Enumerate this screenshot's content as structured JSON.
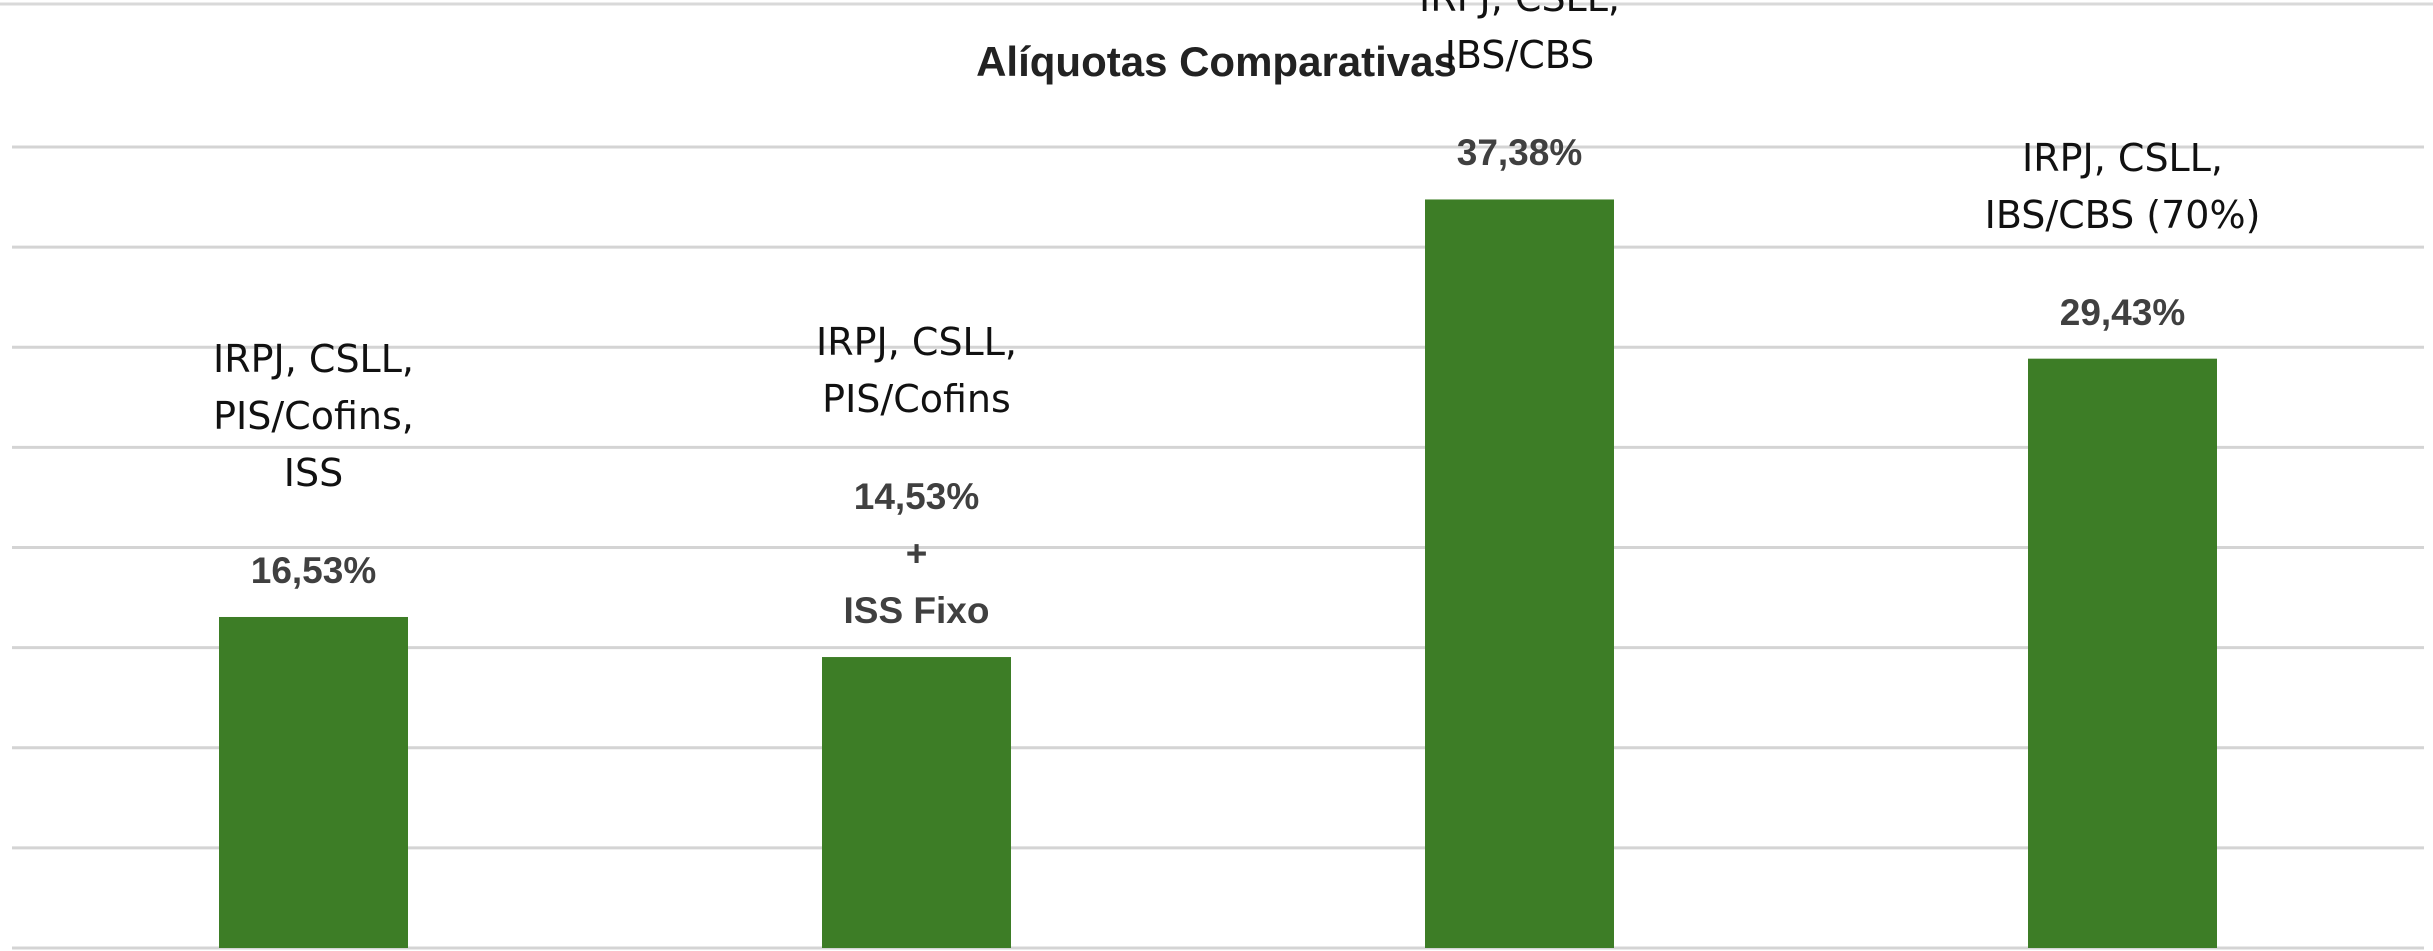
{
  "chart_data": {
    "type": "bar",
    "title": "Alíquotas Comparativas",
    "categories": [
      "IRPJ, CSLL,\nPIS/Cofins,\nISS",
      "IRPJ, CSLL,\nPIS/Cofins",
      "IRPJ, CSLL,\nIBS/CBS",
      "IRPJ, CSLL,\nIBS/CBS (70%)"
    ],
    "values": [
      16.53,
      14.53,
      37.38,
      29.43
    ],
    "value_labels": [
      "16,53%",
      "14,53%\n+\nISS Fixo",
      "37,38%",
      "29,43%"
    ],
    "color": "#3d7d26",
    "ylim": [
      0,
      40
    ],
    "yticks": [
      0,
      5,
      10,
      15,
      20,
      25,
      30,
      35,
      40
    ],
    "grid": true
  }
}
